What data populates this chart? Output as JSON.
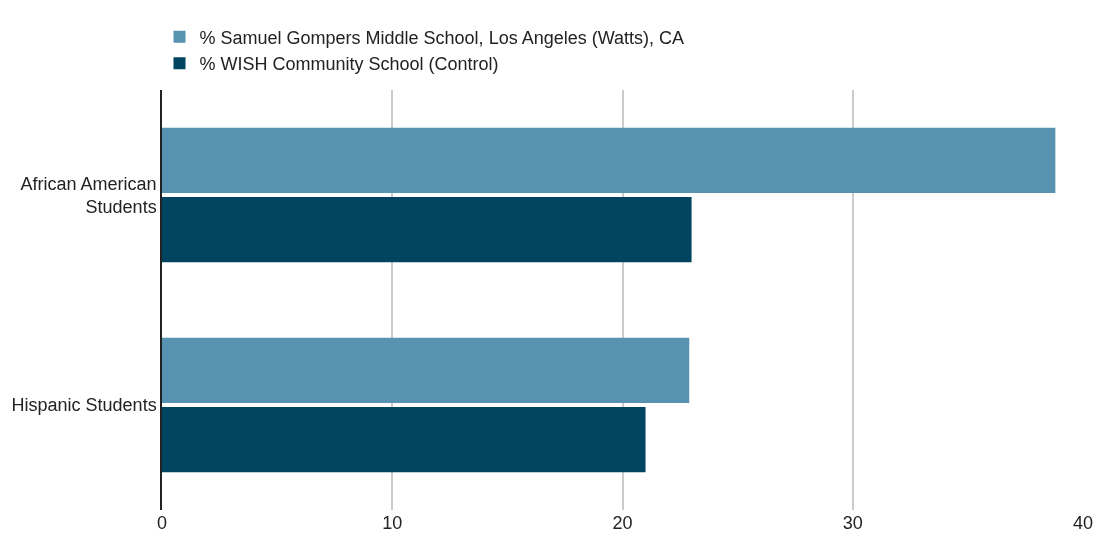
{
  "chart_data": {
    "type": "bar",
    "orientation": "horizontal",
    "categories": [
      "African American\nStudents",
      "Hispanic Students"
    ],
    "series": [
      {
        "name": "% Samuel Gompers Middle School, Los Angeles (Watts), CA",
        "color": "#5793b0",
        "values": [
          38.8,
          22.9
        ]
      },
      {
        "name": "% WISH Community School (Control)",
        "color": "#00445f",
        "values": [
          23,
          21
        ]
      }
    ],
    "xlim": [
      0,
      40
    ],
    "xticks": [
      0,
      10,
      20,
      30,
      40
    ],
    "grid": "x",
    "legend": "top"
  }
}
